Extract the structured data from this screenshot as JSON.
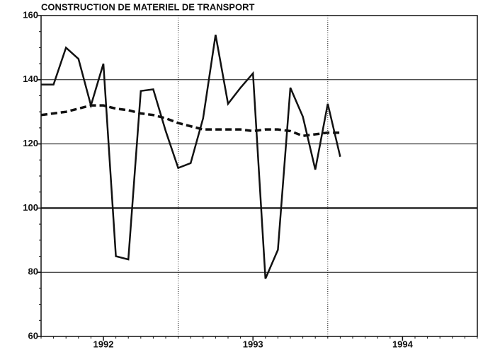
{
  "chart_data": {
    "type": "line",
    "title": "CONSTRUCTION DE MATERIEL DE TRANSPORT",
    "x": [
      0,
      1,
      2,
      3,
      4,
      5,
      6,
      7,
      8,
      9,
      10,
      11,
      12,
      13,
      14,
      15,
      16,
      17,
      18,
      19,
      20,
      21,
      22,
      23,
      24
    ],
    "series": [
      {
        "color": "#111111",
        "dash": "solid",
        "values": [
          138.5,
          138.5,
          150,
          146.5,
          132,
          145,
          85,
          84,
          136.5,
          137,
          124,
          112.5,
          114,
          128,
          154,
          132.5,
          137.5,
          142,
          78,
          87,
          137.5,
          128.5,
          112,
          132.5,
          116
        ]
      },
      {
        "color": "#111111",
        "dash": "dashed",
        "values": [
          129,
          129.5,
          130,
          131,
          132,
          132,
          131,
          130.5,
          129.5,
          129,
          128,
          126.5,
          125.5,
          124.5,
          124.5,
          124.5,
          124.5,
          124,
          124.5,
          124.5,
          124,
          122.5,
          123,
          123.5,
          123.5
        ]
      }
    ],
    "xlim": [
      0,
      35
    ],
    "xticks": [
      {
        "value": 5,
        "label": "1992"
      },
      {
        "value": 17,
        "label": "1993"
      },
      {
        "value": 29,
        "label": "1994"
      }
    ],
    "x_gridlines": [
      11,
      23
    ],
    "ylim": [
      60,
      160
    ],
    "yticks": [
      60,
      80,
      100,
      120,
      140,
      160
    ],
    "reference_line": 100,
    "grid": true
  }
}
